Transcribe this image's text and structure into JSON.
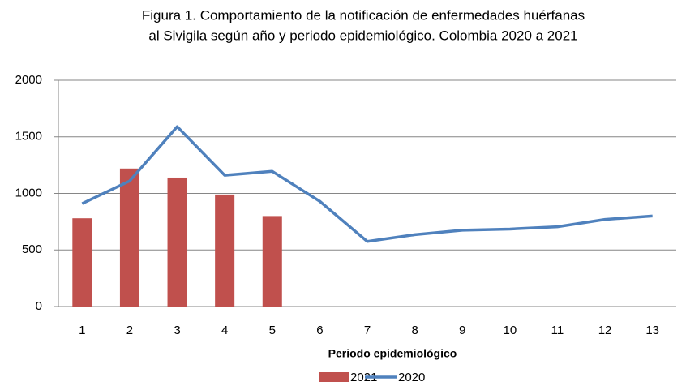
{
  "chart_data": {
    "type": "combo",
    "title": [
      "Figura 1. Comportamiento de la notificación de enfermedades huérfanas",
      "al Sivigila según año y periodo epidemiológico. Colombia 2020 a 2021"
    ],
    "x_label": "Periodo epidemiológico",
    "categories": [
      "1",
      "2",
      "3",
      "4",
      "5",
      "6",
      "7",
      "8",
      "9",
      "10",
      "11",
      "12",
      "13"
    ],
    "series": [
      {
        "name": "2021",
        "type": "bar",
        "color": "#c0504d",
        "values": [
          780,
          1220,
          1140,
          990,
          800,
          null,
          null,
          null,
          null,
          null,
          null,
          null,
          null
        ]
      },
      {
        "name": "2020",
        "type": "line",
        "color": "#4f81bd",
        "values": [
          910,
          1110,
          1590,
          1160,
          1195,
          930,
          575,
          635,
          675,
          685,
          705,
          770,
          800
        ]
      }
    ],
    "ylim": [
      0,
      2000
    ],
    "yticks": [
      0,
      500,
      1000,
      1500,
      2000
    ],
    "grid": true,
    "legend": "bottom"
  }
}
